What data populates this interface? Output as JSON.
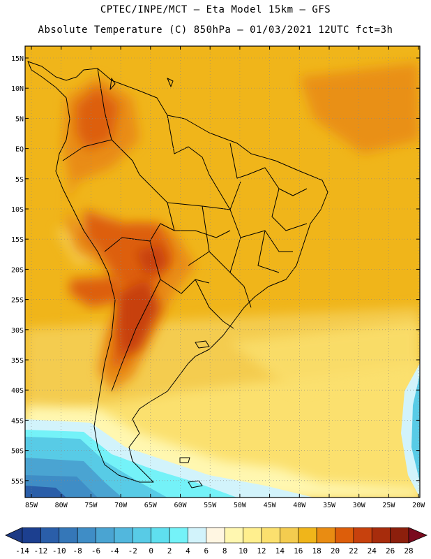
{
  "title_line1": "CPTEC/INPE/MCT –  Eta Model 15km – GFS",
  "title_line2": "Absolute Temperature (C) 850hPa – 01/03/2021 12UTC fct=3h",
  "lat_labels": [
    "15N",
    "10N",
    "5N",
    "EQ",
    "5S",
    "10S",
    "15S",
    "20S",
    "25S",
    "30S",
    "35S",
    "40S",
    "45S",
    "50S",
    "55S"
  ],
  "lon_labels": [
    "85W",
    "80W",
    "75W",
    "70W",
    "65W",
    "60W",
    "55W",
    "50W",
    "45W",
    "40W",
    "35W",
    "30W",
    "25W",
    "20W"
  ],
  "colorbar": {
    "labels": [
      "-14",
      "-12",
      "-10",
      "-8",
      "-6",
      "-4",
      "-2",
      "0",
      "2",
      "4",
      "6",
      "8",
      "10",
      "12",
      "14",
      "16",
      "18",
      "20",
      "22",
      "24",
      "26",
      "28"
    ],
    "colors": [
      "#1c3f8f",
      "#2a5ea9",
      "#3577b8",
      "#3f8dc6",
      "#4aa4d2",
      "#52b7dd",
      "#58cbe6",
      "#5fdfef",
      "#74f2f8",
      "#d2f3fb",
      "#fff6e2",
      "#fff7b0",
      "#ffef8e",
      "#fbe06e",
      "#f4cc4f",
      "#f0b51a",
      "#e98c12",
      "#dd5e0a",
      "#c7410d",
      "#a72c0c",
      "#8c1f0c"
    ],
    "end_left": "#1c3a85",
    "end_right": "#7a0a1e"
  }
}
